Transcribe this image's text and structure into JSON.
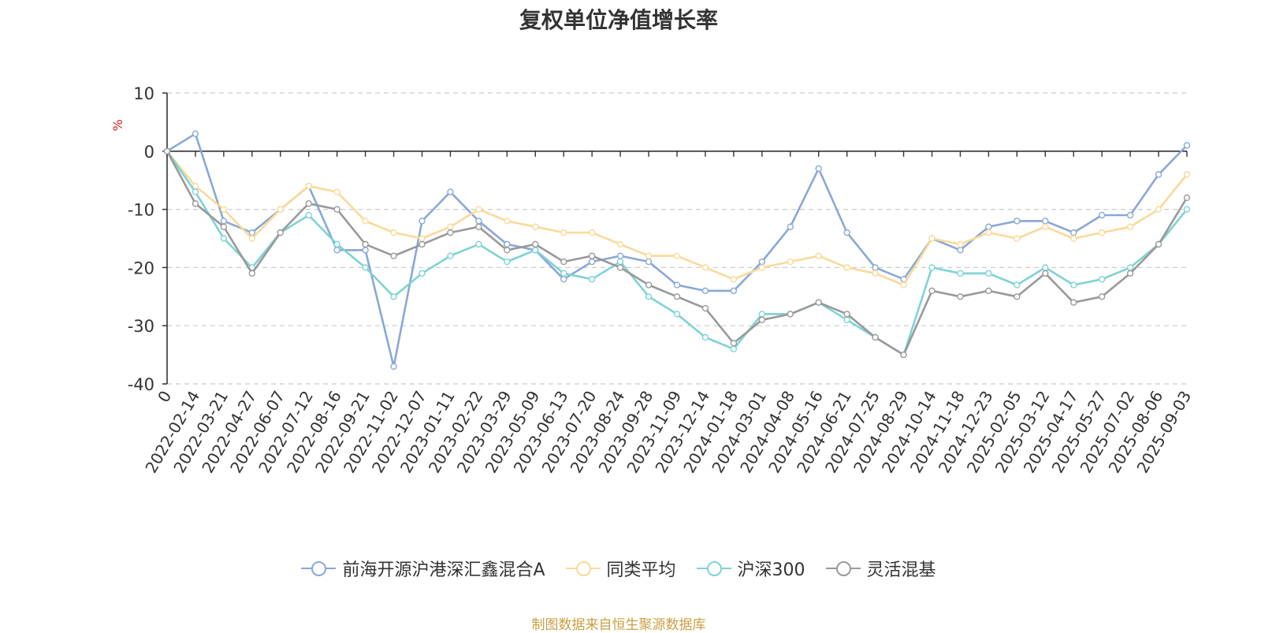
{
  "chart_data": {
    "type": "line",
    "title": "复权单位净值增长率",
    "yunit": "%",
    "ylim": [
      -40,
      10
    ],
    "yticks": [
      10,
      0,
      -10,
      -20,
      -30,
      -40
    ],
    "grid": "horizontal-dashed",
    "legend_position": "bottom-center",
    "x_labels": [
      "0",
      "2022-02-14",
      "2022-03-21",
      "2022-04-27",
      "2022-06-07",
      "2022-07-12",
      "2022-08-16",
      "2022-09-21",
      "2022-11-02",
      "2022-12-07",
      "2023-01-11",
      "2023-02-22",
      "2023-03-29",
      "2023-05-09",
      "2023-06-13",
      "2023-07-20",
      "2023-08-24",
      "2023-09-28",
      "2023-11-09",
      "2023-12-14",
      "2024-01-18",
      "2024-03-01",
      "2024-04-08",
      "2024-05-16",
      "2024-06-21",
      "2024-07-25",
      "2024-08-29",
      "2024-10-14",
      "2024-11-18",
      "2024-12-23",
      "2025-02-05",
      "2025-03-12",
      "2025-04-17",
      "2025-05-27",
      "2025-07-02",
      "2025-08-06",
      "2025-09-03"
    ],
    "series": [
      {
        "name": "前海开源沪港深汇鑫混合A",
        "color": "#88a8d8",
        "values": [
          0,
          3,
          -12,
          -14,
          -10,
          -6,
          -17,
          -17,
          -37,
          -12,
          -7,
          -12,
          -16,
          -17,
          -22,
          -19,
          -18,
          -19,
          -23,
          -24,
          -24,
          -19,
          -13,
          -3,
          -14,
          -20,
          -22,
          -15,
          -17,
          -13,
          -12,
          -12,
          -14,
          -11,
          -11,
          -4,
          1
        ]
      },
      {
        "name": "同类平均",
        "color": "#fad999",
        "values": [
          0,
          -6,
          -10,
          -15,
          -10,
          -6,
          -7,
          -12,
          -14,
          -15,
          -13,
          -10,
          -12,
          -13,
          -14,
          -14,
          -16,
          -18,
          -18,
          -20,
          -22,
          -20,
          -19,
          -18,
          -20,
          -21,
          -23,
          -15,
          -16,
          -14,
          -15,
          -13,
          -15,
          -14,
          -13,
          -10,
          -4
        ]
      },
      {
        "name": "沪深300",
        "color": "#7ed3d4",
        "values": [
          0,
          -7,
          -15,
          -20,
          -14,
          -11,
          -16,
          -20,
          -25,
          -21,
          -18,
          -16,
          -19,
          -17,
          -21,
          -22,
          -19,
          -25,
          -28,
          -32,
          -34,
          -28,
          -28,
          -26,
          -29,
          -32,
          -35,
          -20,
          -21,
          -21,
          -23,
          -20,
          -23,
          -22,
          -20,
          -16,
          -10
        ]
      },
      {
        "name": "灵活混基",
        "color": "#999999",
        "values": [
          0,
          -9,
          -13,
          -21,
          -14,
          -9,
          -10,
          -16,
          -18,
          -16,
          -14,
          -13,
          -17,
          -16,
          -19,
          -18,
          -20,
          -23,
          -25,
          -27,
          -33,
          -29,
          -28,
          -26,
          -28,
          -32,
          -35,
          -24,
          -25,
          -24,
          -25,
          -21,
          -26,
          -25,
          -21,
          -16,
          -8
        ]
      }
    ]
  },
  "source_note": "制图数据来自恒生聚源数据库"
}
